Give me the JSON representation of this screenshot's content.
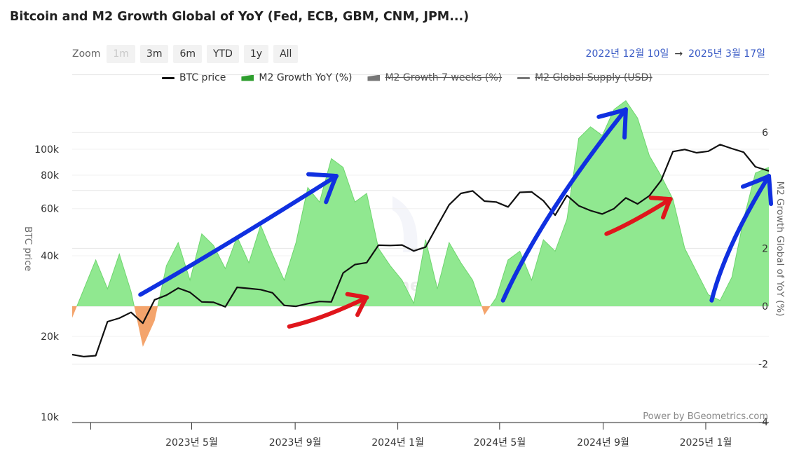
{
  "title": "Bitcoin and M2 Growth Global of YoY (Fed, ECB, GBM, CNM, JPM...)",
  "zoom": {
    "label": "Zoom",
    "buttons": [
      "1m",
      "3m",
      "6m",
      "YTD",
      "1y",
      "All"
    ],
    "disabled": "1m"
  },
  "range": {
    "from": "2022년 12월 10일",
    "arrow": "→",
    "to": "2025년 3월 17일"
  },
  "legend": [
    {
      "label": "BTC price",
      "color": "#111111",
      "kind": "line",
      "visible": true
    },
    {
      "label": "M2 Growth YoY (%)",
      "color": "#2e9e2e",
      "kind": "area",
      "visible": true
    },
    {
      "label": "M2 Growth 7 weeks (%)",
      "color": "#777777",
      "kind": "area",
      "visible": false
    },
    {
      "label": "M2 Global Supply (USD)",
      "color": "#777777",
      "kind": "line",
      "visible": false
    }
  ],
  "credit": "Power by BGeometrics.com",
  "watermark": "BGeometrics",
  "colors": {
    "btc": "#111111",
    "m2_positive": "#90e890",
    "m2_positive_edge": "#6fd66f",
    "m2_negative": "#f4a46c",
    "annotation_blue": "#1030e0",
    "annotation_red": "#e0161c"
  },
  "chart_data": {
    "type": "line",
    "xlabels": [
      "2023년 5월",
      "2023년 9월",
      "2024년 1월",
      "2024년 5월",
      "2024년 9월",
      "2025년 1월"
    ],
    "x_range": [
      "2022-12-10",
      "2025-03-17"
    ],
    "y_left": {
      "title": "BTC price",
      "scale": "log",
      "min": 10000,
      "max": 200000,
      "ticks": [
        {
          "value": 10000,
          "label": "10k"
        },
        {
          "value": 20000,
          "label": "20k"
        },
        {
          "value": 40000,
          "label": "40k"
        },
        {
          "value": 60000,
          "label": "60k"
        },
        {
          "value": 80000,
          "label": "80k"
        },
        {
          "value": 100000,
          "label": "100k"
        }
      ]
    },
    "y_right": {
      "title": "M2 Growth Global of YoY (%)",
      "min": -4,
      "max": 8,
      "ticks": [
        {
          "value": -4,
          "label": "-4"
        },
        {
          "value": -2,
          "label": "-2"
        },
        {
          "value": 0,
          "label": "0"
        },
        {
          "value": 2,
          "label": "2"
        },
        {
          "value": 6,
          "label": "6"
        }
      ]
    },
    "series": [
      {
        "name": "BTC price",
        "axis": "left",
        "points": [
          [
            "2022-12-10",
            17100
          ],
          [
            "2022-12-24",
            16800
          ],
          [
            "2023-01-07",
            16950
          ],
          [
            "2023-01-21",
            22700
          ],
          [
            "2023-02-04",
            23400
          ],
          [
            "2023-02-18",
            24600
          ],
          [
            "2023-03-04",
            22400
          ],
          [
            "2023-03-18",
            27400
          ],
          [
            "2023-04-01",
            28500
          ],
          [
            "2023-04-15",
            30300
          ],
          [
            "2023-04-29",
            29200
          ],
          [
            "2023-05-13",
            26900
          ],
          [
            "2023-05-27",
            26800
          ],
          [
            "2023-06-10",
            25800
          ],
          [
            "2023-06-24",
            30500
          ],
          [
            "2023-07-08",
            30200
          ],
          [
            "2023-07-22",
            29900
          ],
          [
            "2023-08-05",
            29100
          ],
          [
            "2023-08-19",
            26100
          ],
          [
            "2023-09-02",
            25900
          ],
          [
            "2023-09-16",
            26500
          ],
          [
            "2023-09-30",
            27000
          ],
          [
            "2023-10-14",
            26900
          ],
          [
            "2023-10-28",
            34500
          ],
          [
            "2023-11-11",
            37100
          ],
          [
            "2023-11-25",
            37700
          ],
          [
            "2023-12-09",
            43800
          ],
          [
            "2023-12-23",
            43700
          ],
          [
            "2024-01-06",
            43900
          ],
          [
            "2024-01-20",
            41700
          ],
          [
            "2024-02-03",
            43100
          ],
          [
            "2024-02-17",
            51800
          ],
          [
            "2024-03-02",
            62000
          ],
          [
            "2024-03-16",
            68400
          ],
          [
            "2024-03-30",
            69900
          ],
          [
            "2024-04-13",
            64000
          ],
          [
            "2024-04-27",
            63500
          ],
          [
            "2024-05-11",
            60900
          ],
          [
            "2024-05-25",
            69000
          ],
          [
            "2024-06-08",
            69300
          ],
          [
            "2024-06-22",
            64200
          ],
          [
            "2024-07-06",
            56700
          ],
          [
            "2024-07-20",
            67200
          ],
          [
            "2024-08-03",
            61500
          ],
          [
            "2024-08-17",
            59000
          ],
          [
            "2024-08-31",
            57300
          ],
          [
            "2024-09-14",
            60000
          ],
          [
            "2024-09-28",
            65800
          ],
          [
            "2024-10-12",
            62500
          ],
          [
            "2024-10-26",
            67000
          ],
          [
            "2024-11-09",
            76500
          ],
          [
            "2024-11-23",
            98000
          ],
          [
            "2024-12-07",
            99800
          ],
          [
            "2024-12-21",
            97000
          ],
          [
            "2025-01-04",
            98300
          ],
          [
            "2025-01-18",
            104100
          ],
          [
            "2025-02-01",
            100600
          ],
          [
            "2025-02-15",
            97500
          ],
          [
            "2025-03-01",
            86000
          ],
          [
            "2025-03-17",
            83000
          ]
        ]
      },
      {
        "name": "M2 Growth YoY (%)",
        "axis": "right",
        "points": [
          [
            "2022-12-10",
            -0.4
          ],
          [
            "2022-12-24",
            0.6
          ],
          [
            "2023-01-07",
            1.6
          ],
          [
            "2023-01-21",
            0.6
          ],
          [
            "2023-02-04",
            1.8
          ],
          [
            "2023-02-18",
            0.5
          ],
          [
            "2023-03-04",
            -1.4
          ],
          [
            "2023-03-18",
            -0.5
          ],
          [
            "2023-04-01",
            1.4
          ],
          [
            "2023-04-15",
            2.2
          ],
          [
            "2023-04-29",
            0.9
          ],
          [
            "2023-05-13",
            2.5
          ],
          [
            "2023-05-27",
            2.1
          ],
          [
            "2023-06-10",
            1.3
          ],
          [
            "2023-06-24",
            2.4
          ],
          [
            "2023-07-08",
            1.5
          ],
          [
            "2023-07-22",
            2.8
          ],
          [
            "2023-08-05",
            1.8
          ],
          [
            "2023-08-19",
            0.9
          ],
          [
            "2023-09-02",
            2.2
          ],
          [
            "2023-09-16",
            4.1
          ],
          [
            "2023-09-30",
            3.6
          ],
          [
            "2023-10-14",
            5.1
          ],
          [
            "2023-10-28",
            4.8
          ],
          [
            "2023-11-11",
            3.6
          ],
          [
            "2023-11-25",
            3.9
          ],
          [
            "2023-12-09",
            2.0
          ],
          [
            "2023-12-23",
            1.4
          ],
          [
            "2024-01-06",
            0.9
          ],
          [
            "2024-01-20",
            0.1
          ],
          [
            "2024-02-03",
            2.3
          ],
          [
            "2024-02-17",
            0.6
          ],
          [
            "2024-03-02",
            2.2
          ],
          [
            "2024-03-16",
            1.5
          ],
          [
            "2024-03-30",
            0.9
          ],
          [
            "2024-04-13",
            -0.3
          ],
          [
            "2024-04-27",
            0.3
          ],
          [
            "2024-05-11",
            1.6
          ],
          [
            "2024-05-25",
            1.9
          ],
          [
            "2024-06-08",
            0.9
          ],
          [
            "2024-06-22",
            2.3
          ],
          [
            "2024-07-06",
            1.9
          ],
          [
            "2024-07-20",
            3.0
          ],
          [
            "2024-08-03",
            5.8
          ],
          [
            "2024-08-17",
            6.2
          ],
          [
            "2024-08-31",
            5.9
          ],
          [
            "2024-09-14",
            6.8
          ],
          [
            "2024-09-28",
            7.1
          ],
          [
            "2024-10-12",
            6.5
          ],
          [
            "2024-10-26",
            5.2
          ],
          [
            "2024-11-09",
            4.5
          ],
          [
            "2024-11-23",
            3.7
          ],
          [
            "2024-12-07",
            2.0
          ],
          [
            "2024-12-21",
            1.2
          ],
          [
            "2025-01-04",
            0.4
          ],
          [
            "2025-01-18",
            0.2
          ],
          [
            "2025-02-01",
            1.0
          ],
          [
            "2025-02-15",
            3.0
          ],
          [
            "2025-03-01",
            4.6
          ],
          [
            "2025-03-17",
            4.8
          ]
        ]
      }
    ],
    "annotations": [
      {
        "type": "arrow",
        "color": "blue",
        "from": [
          "2023-03-01",
          0.4
        ],
        "to": [
          "2023-10-20",
          4.5
        ]
      },
      {
        "type": "arrow",
        "color": "blue",
        "from": [
          "2024-05-05",
          0.2
        ],
        "to": [
          "2024-09-28",
          6.8
        ]
      },
      {
        "type": "arrow",
        "color": "blue",
        "from": [
          "2025-01-08",
          0.2
        ],
        "to": [
          "2025-03-17",
          4.5
        ]
      },
      {
        "type": "arrow",
        "color": "red",
        "from": [
          "2023-08-25",
          -0.7
        ],
        "to": [
          "2023-11-25",
          0.3
        ]
      },
      {
        "type": "arrow",
        "color": "red",
        "from": [
          "2024-09-05",
          2.5
        ],
        "to": [
          "2024-11-20",
          3.7
        ]
      }
    ]
  }
}
